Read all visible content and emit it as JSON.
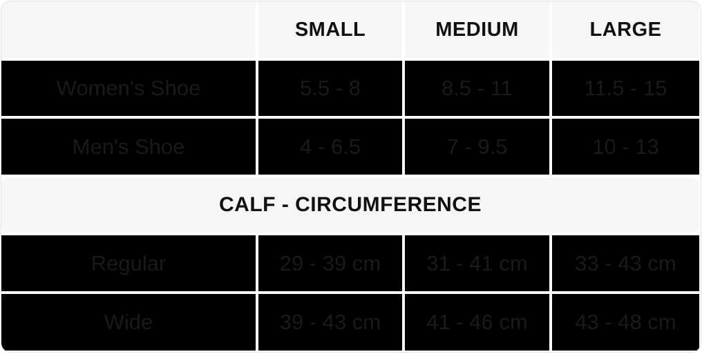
{
  "table": {
    "columns": {
      "small": "SMALL",
      "medium": "MEDIUM",
      "large": "LARGE"
    },
    "section1_rows": [
      {
        "label": "Women's Shoe",
        "values": [
          "5.5 - 8",
          "8.5 - 11",
          "11.5 - 15"
        ]
      },
      {
        "label": "Men's Shoe",
        "values": [
          "4 - 6.5",
          "7 - 9.5",
          "10 - 13"
        ]
      }
    ],
    "section_header": "CALF - CIRCUMFERENCE",
    "section2_rows": [
      {
        "label": "Regular",
        "values": [
          "29 - 39 cm",
          "31 - 41 cm",
          "33 - 43 cm"
        ]
      },
      {
        "label": "Wide",
        "values": [
          "39 - 43 cm",
          "41 - 46 cm",
          "43 - 48 cm"
        ]
      }
    ],
    "colors": {
      "header_background": "#f6f6f7",
      "cell_background": "#000000",
      "cell_text": "#1a1a1a",
      "header_text": "#111111",
      "grid_gap": "#ffffff"
    }
  },
  "chart_data": {
    "type": "table",
    "title": "Size chart with calf circumference",
    "columns": [
      "",
      "SMALL",
      "MEDIUM",
      "LARGE"
    ],
    "rows": [
      [
        "Women's Shoe",
        "5.5 - 8",
        "8.5 - 11",
        "11.5 - 15"
      ],
      [
        "Men's Shoe",
        "4 - 6.5",
        "7 - 9.5",
        "10 - 13"
      ],
      [
        "CALF - CIRCUMFERENCE",
        "",
        "",
        ""
      ],
      [
        "Regular",
        "29 - 39 cm",
        "31 - 41 cm",
        "33 - 43 cm"
      ],
      [
        "Wide",
        "39 - 43 cm",
        "41 - 46 cm",
        "43 - 48 cm"
      ]
    ],
    "layout_hints": {
      "section_header_row_index": 2,
      "section_header_spans_full_width": true,
      "header_style": "light-gray, bold, centered",
      "data_cell_style": "black background, faint dark text, centered"
    }
  }
}
